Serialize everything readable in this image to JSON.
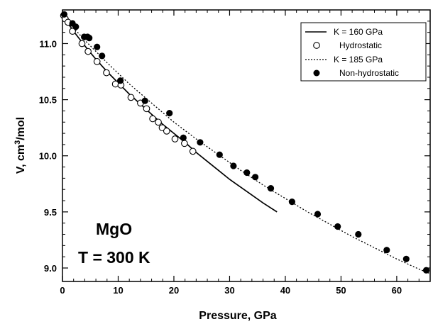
{
  "chart_data": {
    "type": "scatter",
    "title": "",
    "xlabel": "Pressure, GPa",
    "ylabel_parts": {
      "base": "V, cm",
      "sup": "3",
      "tail": "/mol"
    },
    "xlim": [
      0,
      66
    ],
    "ylim": [
      8.88,
      11.3
    ],
    "xticks": [
      0,
      10,
      20,
      30,
      40,
      50,
      60
    ],
    "yticks": [
      9.0,
      9.5,
      10.0,
      10.5,
      11.0
    ],
    "ytick_labels": [
      "9.0",
      "9.5",
      "10.0",
      "10.5",
      "11.0"
    ],
    "grid": false,
    "legend_placement": "top-right",
    "annotations": [
      "MgO",
      "T = 300 K"
    ],
    "series": [
      {
        "name": "K = 160 GPa",
        "kind": "line",
        "style": "solid",
        "x": [
          0,
          2,
          4,
          6,
          8,
          10,
          12,
          14,
          16,
          18,
          20,
          22,
          24,
          26,
          28,
          30,
          32,
          34,
          36,
          38.5
        ],
        "y": [
          11.25,
          11.11,
          10.98,
          10.86,
          10.75,
          10.65,
          10.55,
          10.46,
          10.37,
          10.28,
          10.2,
          10.12,
          10.03,
          9.95,
          9.87,
          9.79,
          9.72,
          9.65,
          9.58,
          9.5
        ]
      },
      {
        "name": "Hydrostatic",
        "kind": "scatter",
        "marker": "open-circle",
        "x": [
          0.2,
          0.5,
          1,
          1.8,
          3.5,
          4.6,
          6.2,
          7.9,
          9.5,
          10.5,
          12.3,
          14,
          15.1,
          16.2,
          17.2,
          17.9,
          18.7,
          20.2,
          21.9,
          23.4
        ],
        "y": [
          11.25,
          11.22,
          11.19,
          11.11,
          11.0,
          10.93,
          10.84,
          10.74,
          10.64,
          10.63,
          10.52,
          10.47,
          10.42,
          10.33,
          10.3,
          10.25,
          10.22,
          10.15,
          10.11,
          10.04
        ]
      },
      {
        "name": "K = 185 GPa",
        "kind": "line",
        "style": "dotted",
        "x": [
          0,
          4,
          8,
          12,
          16,
          20,
          24,
          28,
          32,
          36,
          40,
          44,
          48,
          52,
          56,
          60,
          64,
          66
        ],
        "y": [
          11.25,
          11.03,
          10.83,
          10.64,
          10.47,
          10.3,
          10.15,
          10.01,
          9.87,
          9.74,
          9.62,
          9.5,
          9.39,
          9.28,
          9.18,
          9.08,
          8.99,
          8.95
        ]
      },
      {
        "name": "Non-hydrostatic",
        "kind": "scatter",
        "marker": "filled-circle",
        "x": [
          0.3,
          1.8,
          2.4,
          3.9,
          4.5,
          4.8,
          6.2,
          7.1,
          10.4,
          14.8,
          19.2,
          21.7,
          24.7,
          28.2,
          30.7,
          33.1,
          34.6,
          37.4,
          41.2,
          45.8,
          49.4,
          53.1,
          58.2,
          61.7,
          65.3
        ],
        "y": [
          11.26,
          11.18,
          11.15,
          11.06,
          11.06,
          11.05,
          10.97,
          10.89,
          10.67,
          10.49,
          10.38,
          10.16,
          10.12,
          10.01,
          9.91,
          9.85,
          9.81,
          9.71,
          9.59,
          9.48,
          9.37,
          9.3,
          9.16,
          9.08,
          8.98
        ]
      }
    ]
  }
}
